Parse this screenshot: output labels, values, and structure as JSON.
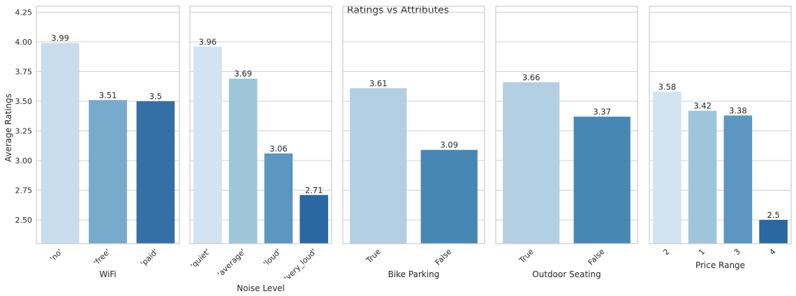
{
  "chart_data": {
    "type": "bar",
    "title": "Ratings vs Attributes",
    "ylabel": "Average Ratings",
    "ylim": [
      2.3,
      4.3
    ],
    "yticks": [
      "2.50",
      "2.75",
      "3.00",
      "3.25",
      "3.50",
      "3.75",
      "4.00",
      "4.25"
    ],
    "grid": true,
    "panels": [
      {
        "xlabel": "WiFi",
        "categories": [
          "'no'",
          "'free'",
          "'paid'"
        ],
        "values": [
          3.99,
          3.51,
          3.5
        ],
        "labels": [
          "3.99",
          "3.51",
          "3.5"
        ],
        "colors": [
          "#c9dcec",
          "#77aacb",
          "#3470a6"
        ]
      },
      {
        "xlabel": "Noise Level",
        "categories": [
          "'quiet'",
          "'average'",
          "'loud'",
          "'very_loud'"
        ],
        "values": [
          3.96,
          3.69,
          3.06,
          2.71
        ],
        "labels": [
          "3.96",
          "3.69",
          "3.06",
          "2.71"
        ],
        "colors": [
          "#d2e3f2",
          "#9ec5da",
          "#5b97c0",
          "#2b67a0"
        ]
      },
      {
        "xlabel": "Bike Parking",
        "categories": [
          "True",
          "False"
        ],
        "values": [
          3.61,
          3.09
        ],
        "labels": [
          "3.61",
          "3.09"
        ],
        "colors": [
          "#b3cfe2",
          "#4787b4"
        ]
      },
      {
        "xlabel": "Outdoor Seating",
        "categories": [
          "True",
          "False"
        ],
        "values": [
          3.66,
          3.37
        ],
        "labels": [
          "3.66",
          "3.37"
        ],
        "colors": [
          "#b3cfe2",
          "#4787b4"
        ]
      },
      {
        "xlabel": "Price Range",
        "categories": [
          "2",
          "1",
          "3",
          "4"
        ],
        "values": [
          3.58,
          3.42,
          3.38,
          2.5
        ],
        "labels": [
          "3.58",
          "3.42",
          "3.38",
          "2.5"
        ],
        "colors": [
          "#d2e3f2",
          "#9ec5da",
          "#5b97c0",
          "#2b67a0"
        ]
      }
    ]
  }
}
